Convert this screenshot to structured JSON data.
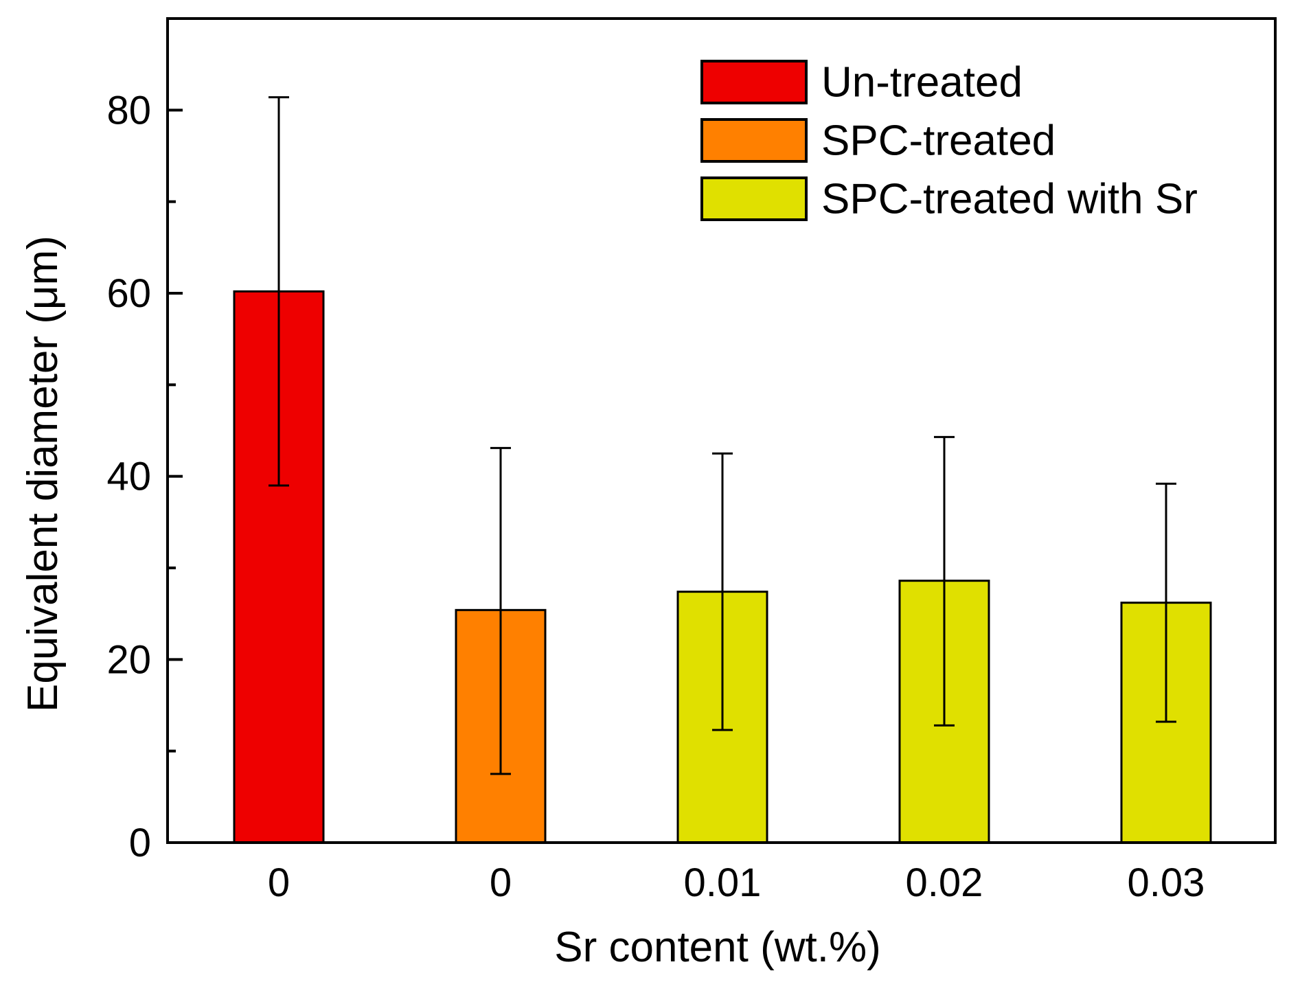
{
  "chart_data": {
    "type": "bar",
    "title": "",
    "xlabel": "Sr content (wt.%)",
    "ylabel": "Equivalent diameter (μm)",
    "ylim": [
      0,
      90
    ],
    "yticks": [
      0,
      20,
      40,
      60,
      80
    ],
    "yminor_ticks": [
      10,
      30,
      50,
      70
    ],
    "grid": false,
    "legend_position": "top-right",
    "categories": [
      "0",
      "0",
      "0.01",
      "0.02",
      "0.03"
    ],
    "values": [
      60.2,
      25.4,
      27.4,
      28.6,
      26.2
    ],
    "error_low": [
      39.0,
      7.5,
      12.3,
      12.8,
      13.2
    ],
    "error_high": [
      81.4,
      43.1,
      42.5,
      44.3,
      39.2
    ],
    "groups": [
      "Un-treated",
      "SPC-treated",
      "SPC-treated with Sr",
      "SPC-treated with Sr",
      "SPC-treated with Sr"
    ],
    "legend": [
      {
        "label": "Un-treated",
        "color": "#ee0000"
      },
      {
        "label": "SPC-treated",
        "color": "#ff8000"
      },
      {
        "label": "SPC-treated with Sr",
        "color": "#e0e000"
      }
    ]
  }
}
